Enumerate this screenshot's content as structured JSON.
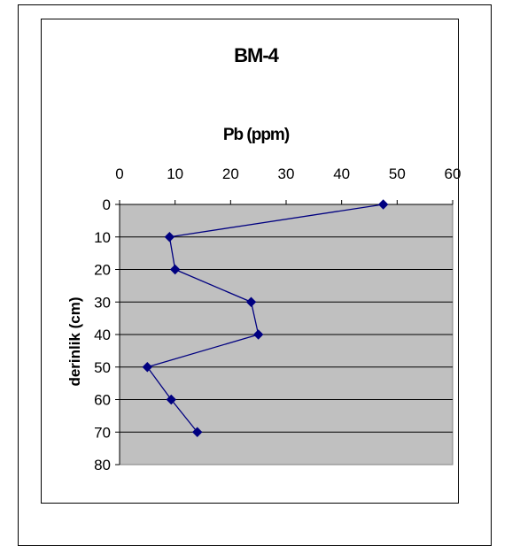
{
  "chart_data": {
    "type": "line",
    "title": "BM-4",
    "xlabel": "Pb (ppm)",
    "ylabel": "derinlik (cm)",
    "xlim": [
      0,
      60
    ],
    "ylim": [
      0,
      80
    ],
    "y_inverted": true,
    "x_axis_position": "top",
    "x_ticks": [
      0,
      10,
      20,
      30,
      40,
      50,
      60
    ],
    "y_ticks": [
      0,
      10,
      20,
      30,
      40,
      50,
      60,
      70,
      80
    ],
    "grid": "horizontal",
    "plot_background": "#c0c0c0",
    "series_color": "#000080",
    "marker": "diamond",
    "legend": "none",
    "series": [
      {
        "x": [
          47.5,
          9,
          10,
          23.7,
          25,
          5,
          9.3,
          14
        ],
        "y": [
          0,
          10,
          20,
          30,
          40,
          50,
          60,
          70
        ]
      }
    ]
  }
}
